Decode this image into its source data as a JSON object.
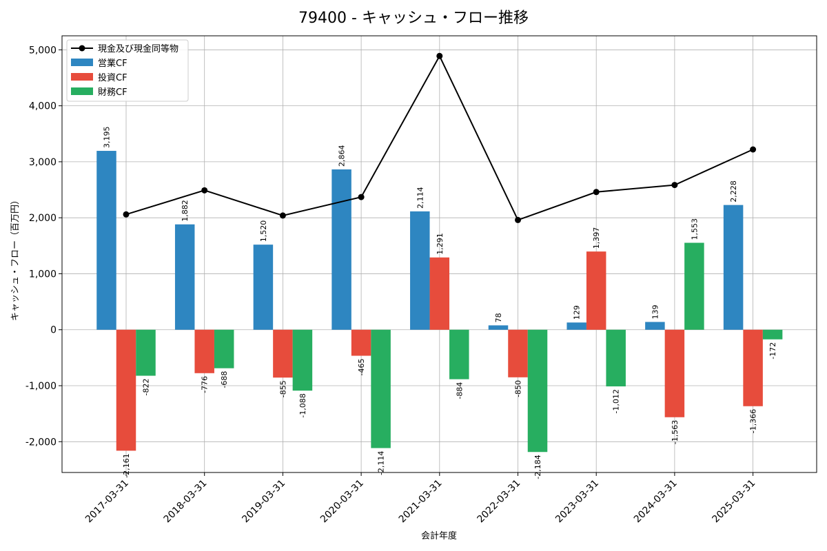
{
  "chart_data": {
    "type": "bar",
    "title": "79400 - キャッシュ・フロー推移",
    "xlabel": "会計年度",
    "ylabel": "キャッシュ・フロー（百万円）",
    "ylim": [
      -2550,
      5250
    ],
    "yticks": [
      -2000,
      -1000,
      0,
      1000,
      2000,
      3000,
      4000,
      5000
    ],
    "ytick_labels": [
      "-2,000",
      "-1,000",
      "0",
      "1,000",
      "2,000",
      "3,000",
      "4,000",
      "5,000"
    ],
    "grid": true,
    "legend_position": "top-left",
    "categories": [
      "2017-03-31",
      "2018-03-31",
      "2019-03-31",
      "2020-03-31",
      "2021-03-31",
      "2022-03-31",
      "2023-03-31",
      "2024-03-31",
      "2025-03-31"
    ],
    "series": [
      {
        "name": "営業CF",
        "kind": "bar",
        "color": "#2e86c1",
        "values": [
          3195,
          1882,
          1520,
          2864,
          2114,
          78,
          129,
          139,
          2228
        ],
        "labels": [
          "3,195",
          "1,882",
          "1,520",
          "2,864",
          "2,114",
          "78",
          "129",
          "139",
          "2,228"
        ]
      },
      {
        "name": "投資CF",
        "kind": "bar",
        "color": "#e74c3c",
        "values": [
          -2161,
          -776,
          -855,
          -465,
          1291,
          -850,
          1397,
          -1563,
          -1366
        ],
        "labels": [
          "-2,161",
          "-776",
          "-855",
          "-465",
          "1,291",
          "-850",
          "1,397",
          "-1,563",
          "-1,366"
        ]
      },
      {
        "name": "財務CF",
        "kind": "bar",
        "color": "#27ae60",
        "values": [
          -822,
          -688,
          -1088,
          -2114,
          -884,
          -2184,
          -1012,
          1553,
          -172
        ],
        "labels": [
          "-822",
          "-688",
          "-1,088",
          "-2,114",
          "-884",
          "-2,184",
          "-1,012",
          "1,553",
          "-172"
        ]
      },
      {
        "name": "現金及び現金同等物",
        "kind": "line",
        "color": "#000000",
        "values": [
          2060,
          2490,
          2040,
          2370,
          4890,
          1960,
          2460,
          2585,
          3220
        ]
      }
    ]
  }
}
